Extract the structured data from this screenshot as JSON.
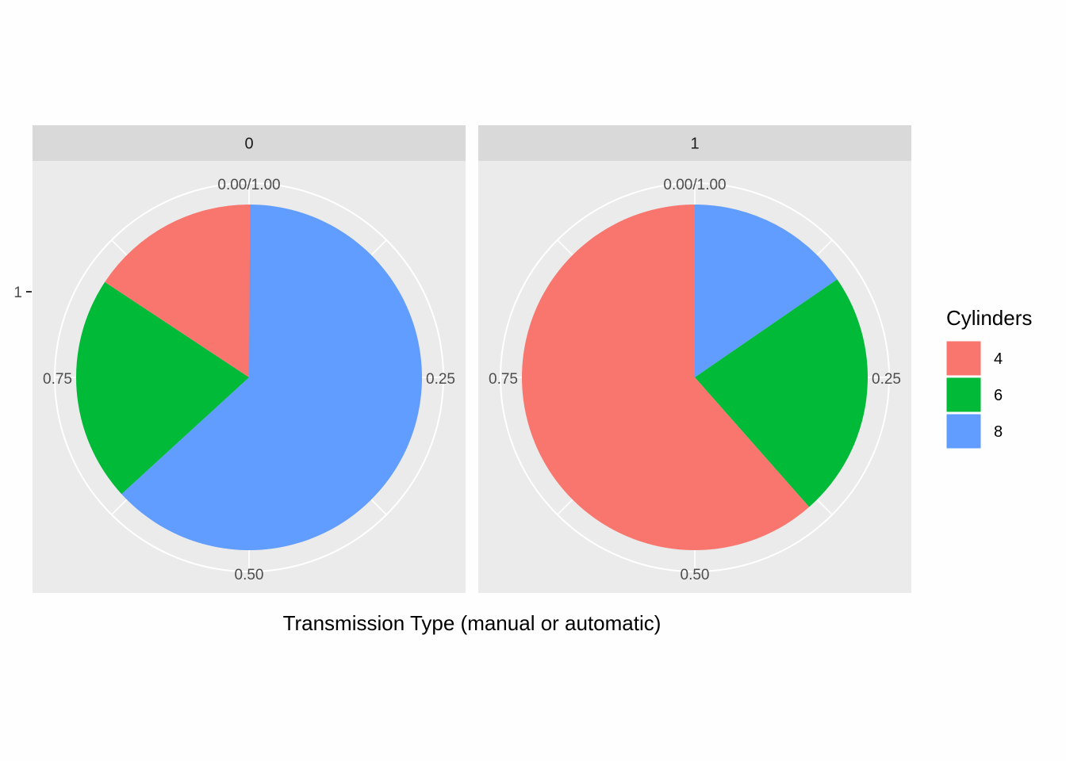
{
  "chart_data": {
    "type": "pie",
    "xlabel": "Transmission Type (manual or automatic)",
    "y_tick_label": "1",
    "theta_ticks": [
      "0.00/1.00",
      "0.25",
      "0.50",
      "0.75"
    ],
    "legend": {
      "title": "Cylinders",
      "placement": "right",
      "entries": [
        {
          "label": "4",
          "color": "#F8766D"
        },
        {
          "label": "6",
          "color": "#00BA38"
        },
        {
          "label": "8",
          "color": "#619CFF"
        }
      ]
    },
    "facets": [
      {
        "label": "0",
        "slices": [
          {
            "category": "8",
            "value": 0.632
          },
          {
            "category": "6",
            "value": 0.211
          },
          {
            "category": "4",
            "value": 0.158
          }
        ]
      },
      {
        "label": "1",
        "slices": [
          {
            "category": "8",
            "value": 0.154
          },
          {
            "category": "6",
            "value": 0.231
          },
          {
            "category": "4",
            "value": 0.615
          }
        ]
      }
    ],
    "colors": {
      "panel_background": "#EBEBEB",
      "strip_background": "#D9D9D9",
      "grid": "#FFFFFF"
    }
  }
}
